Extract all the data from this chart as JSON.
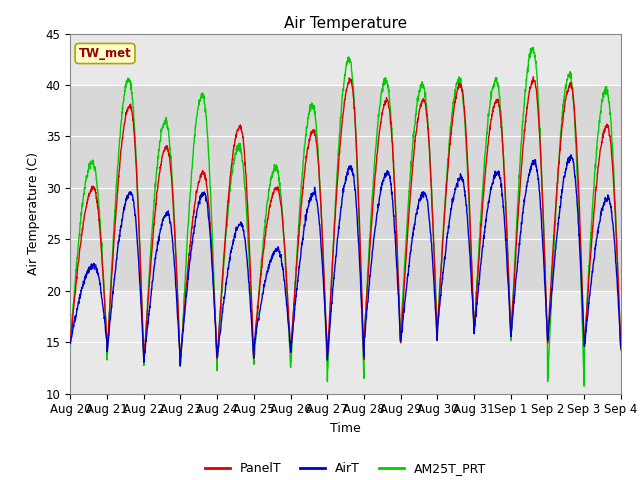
{
  "title": "Air Temperature",
  "xlabel": "Time",
  "ylabel": "Air Temperature (C)",
  "ylim": [
    10,
    45
  ],
  "xlim": [
    0,
    15
  ],
  "x_tick_labels": [
    "Aug 20",
    "Aug 21",
    "Aug 22",
    "Aug 23",
    "Aug 24",
    "Aug 25",
    "Aug 26",
    "Aug 27",
    "Aug 28",
    "Aug 29",
    "Aug 30",
    "Aug 31",
    "Sep 1",
    "Sep 2",
    "Sep 3",
    "Sep 4"
  ],
  "shaded_band": [
    20,
    40
  ],
  "annotation_text": "TW_met",
  "annotation_box_facecolor": "#ffffcc",
  "annotation_box_edgecolor": "#aaa800",
  "annotation_text_color": "#990000",
  "legend_entries": [
    "PanelT",
    "AirT",
    "AM25T_PRT"
  ],
  "legend_colors": [
    "#dd0000",
    "#0000cc",
    "#00cc00"
  ],
  "background_color": "#ffffff",
  "plot_bg_color": "#e8e8e8",
  "shaded_band_color": "#d8d8d8",
  "grid_color": "#ffffff",
  "line_width": 1.0,
  "panel_peaks": [
    30.0,
    38.0,
    34.0,
    31.5,
    36.0,
    30.0,
    35.5,
    40.5,
    38.5,
    38.5,
    40.0,
    38.5,
    40.5,
    40.0,
    36.0
  ],
  "air_peaks": [
    22.5,
    29.5,
    27.5,
    29.5,
    26.5,
    24.0,
    29.5,
    32.0,
    31.5,
    29.5,
    31.0,
    31.5,
    32.5,
    33.0,
    29.0
  ],
  "am25_peaks": [
    32.5,
    40.5,
    36.5,
    39.0,
    34.0,
    32.0,
    38.0,
    42.5,
    40.5,
    40.0,
    40.5,
    40.5,
    43.5,
    41.0,
    39.5
  ],
  "night_min": [
    15.0,
    14.0,
    13.0,
    13.5,
    13.5,
    14.5,
    14.0,
    13.5,
    15.0,
    15.0,
    16.5,
    16.0,
    15.5,
    15.0,
    14.5
  ],
  "am25_night_min": [
    15.0,
    13.5,
    12.5,
    12.5,
    13.0,
    13.0,
    12.5,
    11.5,
    15.0,
    16.0,
    16.0,
    16.0,
    15.0,
    11.0,
    14.0
  ]
}
